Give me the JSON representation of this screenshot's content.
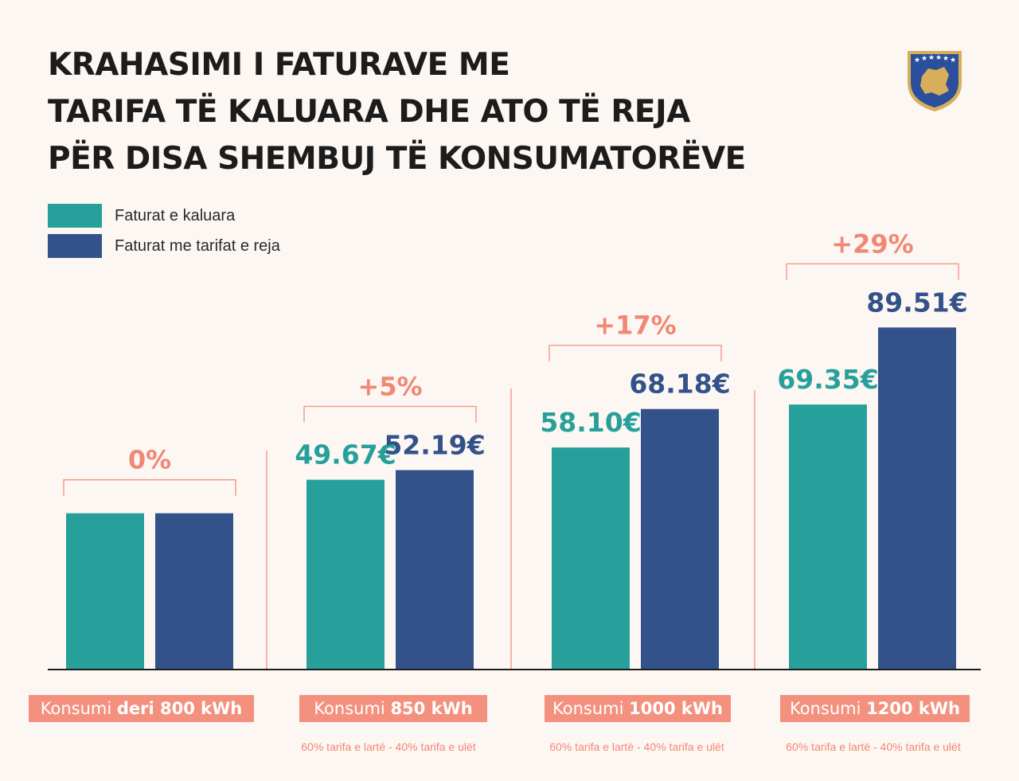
{
  "title_lines": [
    "KRAHASIMI I FATURAVE ME",
    "TARIFA TË KALUARA DHE ATO TË REJA",
    "PËR DISA SHEMBUJ TË KONSUMATORËVE"
  ],
  "colors": {
    "old": "#27a09c",
    "new": "#33528a",
    "accent": "#f4917e",
    "emblem_blue": "#2a4f9c",
    "emblem_gold": "#d9ae5a"
  },
  "chart_data": {
    "type": "bar",
    "title": "KRAHASIMI I FATURAVE ME TARIFA TË KALUARA DHE ATO TË REJA PËR DISA SHEMBUJ TË KONSUMATORËVE",
    "categories": [
      "Konsumi deri 800 kWh",
      "Konsumi 850 kWh",
      "Konsumi 1000 kWh",
      "Konsumi 1200 kWh"
    ],
    "category_parts": [
      {
        "plain": "Konsumi ",
        "bold": "deri 800 kWh"
      },
      {
        "plain": "Konsumi ",
        "bold": "850 kWh"
      },
      {
        "plain": "Konsumi ",
        "bold": "1000 kWh"
      },
      {
        "plain": "Konsumi ",
        "bold": "1200 kWh"
      }
    ],
    "series": [
      {
        "name": "Faturat e kaluara",
        "values": [
          40.9,
          49.67,
          58.1,
          69.35
        ],
        "labels": [
          "",
          "49.67€",
          "58.10€",
          "69.35€"
        ]
      },
      {
        "name": "Faturat me tarifat e reja",
        "values": [
          40.9,
          52.19,
          68.18,
          89.51
        ],
        "labels": [
          "",
          "52.19€",
          "68.18€",
          "89.51€"
        ]
      }
    ],
    "percent_change": [
      "0%",
      "+5%",
      "+17%",
      "+29%"
    ],
    "notes": [
      "",
      "60% tarifa e lartë - 40% tarifa e ulët",
      "60% tarifa e lartë - 40% tarifa e ulët",
      "60% tarifa e lartë - 40% tarifa e ulët"
    ],
    "ylim": [
      0,
      120
    ],
    "legend_position": "top-left",
    "grid": false
  }
}
